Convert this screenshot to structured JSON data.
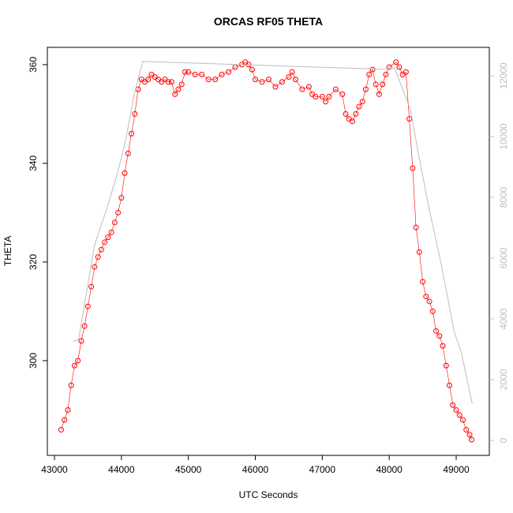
{
  "chart_data": {
    "type": "line",
    "title": "ORCAS RF05 THETA",
    "x_label": "UTC Seconds",
    "y_label": "THETA",
    "xlim": [
      42894,
      49495
    ],
    "xticks": [
      43000,
      44000,
      45000,
      46000,
      47000,
      48000,
      49000
    ],
    "ylim": [
      280.8,
      363.5
    ],
    "yticks": [
      300,
      320,
      340,
      360
    ],
    "y2lim": [
      -494,
      12935
    ],
    "y2ticks": [
      0,
      2000,
      4000,
      6000,
      8000,
      10000,
      12000
    ],
    "series": [
      {
        "color": "#ff0000",
        "marker": "circle",
        "x": [
          43100,
          43150,
          43200,
          43250,
          43300,
          43350,
          43400,
          43450,
          43500,
          43550,
          43600,
          43650,
          43700,
          43750,
          43800,
          43850,
          43900,
          43950,
          44000,
          44050,
          44100,
          44150,
          44200,
          44250,
          44300,
          44350,
          44400,
          44450,
          44500,
          44550,
          44600,
          44650,
          44700,
          44750,
          44800,
          44850,
          44900,
          44950,
          45000,
          45100,
          45200,
          45300,
          45400,
          45500,
          45600,
          45700,
          45800,
          45850,
          45900,
          45950,
          46000,
          46100,
          46200,
          46300,
          46400,
          46500,
          46550,
          46600,
          46700,
          46800,
          46850,
          46900,
          47000,
          47050,
          47100,
          47200,
          47300,
          47350,
          47400,
          47450,
          47500,
          47550,
          47600,
          47650,
          47700,
          47750,
          47800,
          47850,
          47900,
          47950,
          48000,
          48100,
          48150,
          48200,
          48250,
          48300,
          48350,
          48400,
          48450,
          48500,
          48550,
          48600,
          48650,
          48700,
          48750,
          48800,
          48850,
          48900,
          48950,
          49000,
          49050,
          49100,
          49150,
          49200,
          49230
        ],
        "values": [
          286,
          288,
          290,
          295,
          299,
          300,
          304,
          307,
          311,
          315,
          319,
          321,
          322.5,
          324,
          325,
          326,
          328,
          330,
          333,
          338,
          342,
          346,
          350,
          355,
          357,
          356.5,
          357,
          358,
          357.5,
          357,
          356.5,
          357,
          356.5,
          356.5,
          354,
          355,
          356,
          358.5,
          358.5,
          358,
          358,
          357,
          357,
          358,
          358.5,
          359.5,
          360,
          360.5,
          360,
          359,
          357,
          356.5,
          357,
          355.5,
          356.5,
          357.5,
          358.5,
          357,
          355,
          355.5,
          354,
          353.5,
          353.5,
          352.5,
          353.5,
          355,
          354,
          350,
          349,
          348.5,
          350,
          351.5,
          352.5,
          355,
          358,
          359,
          356,
          354,
          356,
          358,
          359.5,
          360.5,
          359.5,
          358,
          358.5,
          349,
          339,
          327,
          322,
          316,
          313,
          312,
          310,
          306,
          305,
          303,
          299,
          295,
          291,
          290,
          289,
          288,
          286,
          285,
          284
        ]
      },
      {
        "color": "#bebebe",
        "axis": "y2",
        "x": [
          43280,
          43360,
          43480,
          43600,
          43780,
          43955,
          44070,
          44190,
          44320,
          47960,
          48080,
          48320,
          48435,
          48610,
          48790,
          48970,
          49080,
          49240
        ],
        "values": [
          3250,
          3320,
          4880,
          6440,
          7610,
          8900,
          9950,
          11380,
          12470,
          12210,
          12260,
          10860,
          9430,
          7480,
          5660,
          3580,
          2860,
          1200
        ]
      }
    ]
  }
}
